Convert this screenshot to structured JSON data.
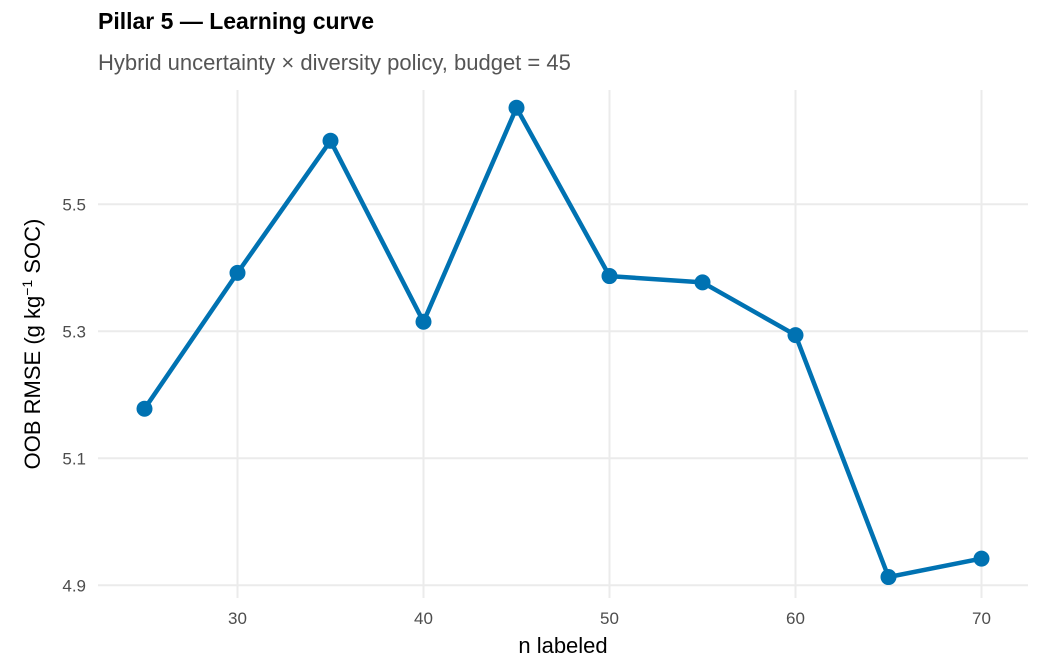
{
  "chart_data": {
    "type": "line",
    "title": "Pillar 5 — Learning curve",
    "subtitle": "Hybrid uncertainty × diversity policy, budget = 45",
    "xlabel": "n labeled",
    "ylabel": {
      "prefix": "OOB RMSE (g kg",
      "superscript": "−1",
      "suffix": " SOC)"
    },
    "x": [
      25,
      30,
      35,
      40,
      45,
      50,
      55,
      60,
      65,
      70
    ],
    "series": [
      {
        "values": [
          5.178,
          5.392,
          5.6,
          5.315,
          5.652,
          5.387,
          5.377,
          5.294,
          4.913,
          4.942
        ]
      }
    ],
    "xlim": [
      22.5,
      72.5
    ],
    "ylim": [
      4.88,
      5.68
    ],
    "x_ticks": [
      30,
      40,
      50,
      60,
      70
    ],
    "x_tick_labels": [
      "30",
      "40",
      "50",
      "60",
      "70"
    ],
    "y_ticks": [
      4.9,
      5.1,
      5.3,
      5.5
    ],
    "y_tick_labels": [
      "4.9",
      "5.1",
      "5.3",
      "5.5"
    ],
    "x_minor_ticks": [
      25,
      35,
      45,
      55,
      65
    ],
    "y_minor_ticks": [
      5.0,
      5.2,
      5.4,
      5.6
    ],
    "grid": true,
    "legend": "none",
    "colors": {
      "series": "#0072b2",
      "grid": "#ebebeb",
      "tick_text": "#4d4d4d",
      "subtitle": "#555555"
    }
  }
}
